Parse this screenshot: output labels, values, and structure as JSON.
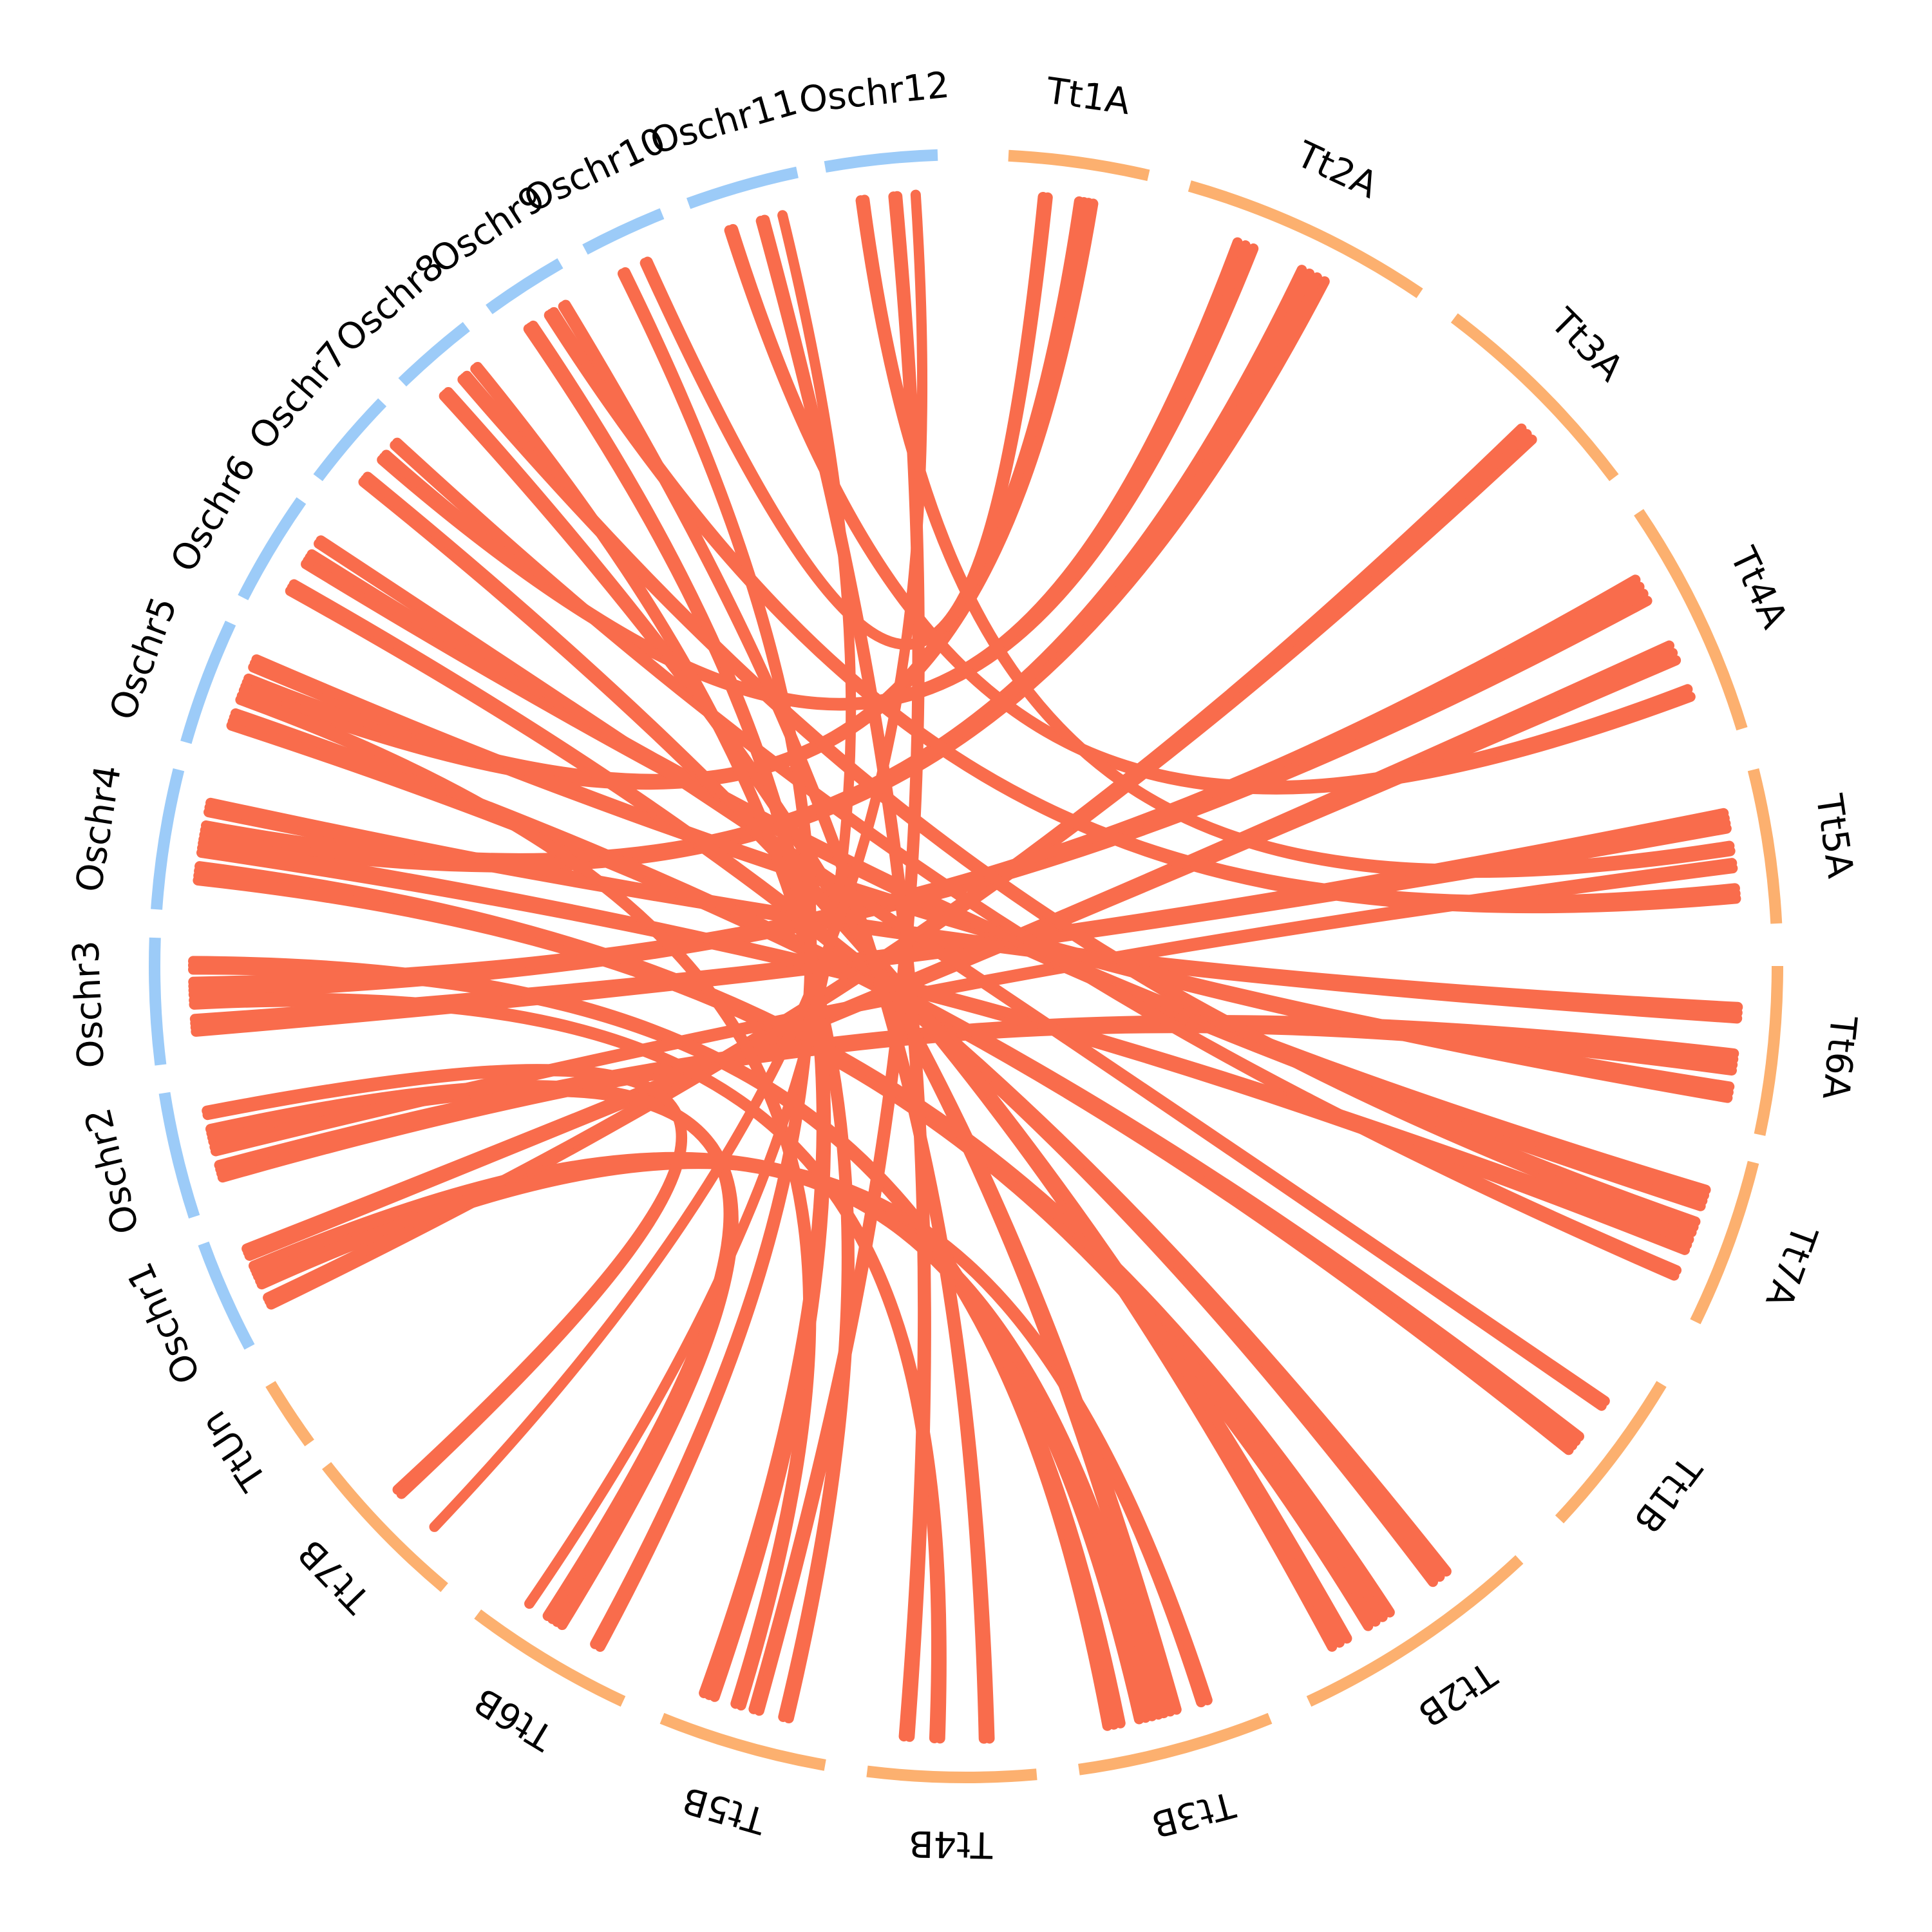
{
  "chart_data": {
    "type": "circos",
    "colors": {
      "wheat": "#fcb06f",
      "rice": "#9ccbf8",
      "link": "#f96c4c"
    },
    "segments": [
      {
        "label": "Tt1A",
        "group": "wheat"
      },
      {
        "label": "Tt2A",
        "group": "wheat"
      },
      {
        "label": "Tt3A",
        "group": "wheat"
      },
      {
        "label": "Tt4A",
        "group": "wheat"
      },
      {
        "label": "Tt5A",
        "group": "wheat"
      },
      {
        "label": "Tt6A",
        "group": "wheat"
      },
      {
        "label": "Tt7A",
        "group": "wheat"
      },
      {
        "label": "Tt1B",
        "group": "wheat"
      },
      {
        "label": "Tt2B",
        "group": "wheat"
      },
      {
        "label": "Tt3B",
        "group": "wheat"
      },
      {
        "label": "Tt4B",
        "group": "wheat"
      },
      {
        "label": "Tt5B",
        "group": "wheat"
      },
      {
        "label": "Tt6B",
        "group": "wheat"
      },
      {
        "label": "Tt7B",
        "group": "wheat"
      },
      {
        "label": "TtUn",
        "group": "wheat"
      },
      {
        "label": "Oschr1",
        "group": "rice"
      },
      {
        "label": "Oschr2",
        "group": "rice"
      },
      {
        "label": "Oschr3",
        "group": "rice"
      },
      {
        "label": "Oschr4",
        "group": "rice"
      },
      {
        "label": "Oschr5",
        "group": "rice"
      },
      {
        "label": "Oschr6",
        "group": "rice"
      },
      {
        "label": "Oschr7",
        "group": "rice"
      },
      {
        "label": "Oschr8",
        "group": "rice"
      },
      {
        "label": "Oschr9",
        "group": "rice"
      },
      {
        "label": "Oschr10",
        "group": "rice"
      },
      {
        "label": "Oschr11",
        "group": "rice"
      },
      {
        "label": "Oschr12",
        "group": "rice"
      }
    ],
    "links": [
      {
        "rice": "Oschr1",
        "wheat": "Tt3B",
        "count": 4
      },
      {
        "rice": "Oschr1",
        "wheat": "Tt3A",
        "count": 3
      },
      {
        "rice": "Oschr1",
        "wheat": "Tt4A",
        "count": 3
      },
      {
        "rice": "Oschr1",
        "wheat": "Tt3B",
        "count": 2
      },
      {
        "rice": "Oschr2",
        "wheat": "Tt6B",
        "count": 4
      },
      {
        "rice": "Oschr2",
        "wheat": "Tt6A",
        "count": 4
      },
      {
        "rice": "Oschr2",
        "wheat": "Tt7B",
        "count": 2
      },
      {
        "rice": "Oschr2",
        "wheat": "Tt5A",
        "count": 2
      },
      {
        "rice": "Oschr3",
        "wheat": "Tt4A",
        "count": 4
      },
      {
        "rice": "Oschr3",
        "wheat": "Tt5A",
        "count": 4
      },
      {
        "rice": "Oschr3",
        "wheat": "Tt3B",
        "count": 3
      },
      {
        "rice": "Oschr3",
        "wheat": "Tt4B",
        "count": 2
      },
      {
        "rice": "Oschr4",
        "wheat": "Tt2A",
        "count": 4
      },
      {
        "rice": "Oschr4",
        "wheat": "Tt2B",
        "count": 4
      },
      {
        "rice": "Oschr4",
        "wheat": "Tt6A",
        "count": 3
      },
      {
        "rice": "Oschr4",
        "wheat": "Tt7A",
        "count": 3
      },
      {
        "rice": "Oschr5",
        "wheat": "Tt1A",
        "count": 4
      },
      {
        "rice": "Oschr5",
        "wheat": "Tt1B",
        "count": 4
      },
      {
        "rice": "Oschr5",
        "wheat": "Tt6A",
        "count": 3
      },
      {
        "rice": "Oschr5",
        "wheat": "Tt5B",
        "count": 2
      },
      {
        "rice": "Oschr6",
        "wheat": "Tt7A",
        "count": 4
      },
      {
        "rice": "Oschr6",
        "wheat": "Tt2B",
        "count": 3
      },
      {
        "rice": "Oschr6",
        "wheat": "Tt1B",
        "count": 2
      },
      {
        "rice": "Oschr7",
        "wheat": "Tt2A",
        "count": 3
      },
      {
        "rice": "Oschr7",
        "wheat": "Tt2B",
        "count": 3
      },
      {
        "rice": "Oschr7",
        "wheat": "Tt7A",
        "count": 2
      },
      {
        "rice": "Oschr8",
        "wheat": "Tt7A",
        "count": 3
      },
      {
        "rice": "Oschr8",
        "wheat": "Tt3B",
        "count": 3
      },
      {
        "rice": "Oschr8",
        "wheat": "Tt5B",
        "count": 2
      },
      {
        "rice": "Oschr9",
        "wheat": "Tt5A",
        "count": 3
      },
      {
        "rice": "Oschr9",
        "wheat": "Tt5B",
        "count": 3
      },
      {
        "rice": "Oschr9",
        "wheat": "Tt4B",
        "count": 2
      },
      {
        "rice": "Oschr10",
        "wheat": "Tt1A",
        "count": 2
      },
      {
        "rice": "Oschr10",
        "wheat": "Tt6B",
        "count": 2
      },
      {
        "rice": "Oschr11",
        "wheat": "Tt4B",
        "count": 2
      },
      {
        "rice": "Oschr11",
        "wheat": "Tt4A",
        "count": 2
      },
      {
        "rice": "Oschr11",
        "wheat": "Tt6B",
        "count": 1
      },
      {
        "rice": "Oschr12",
        "wheat": "Tt5B",
        "count": 2
      },
      {
        "rice": "Oschr12",
        "wheat": "Tt5A",
        "count": 2
      },
      {
        "rice": "Oschr12",
        "wheat": "Tt7B",
        "count": 1
      }
    ]
  }
}
